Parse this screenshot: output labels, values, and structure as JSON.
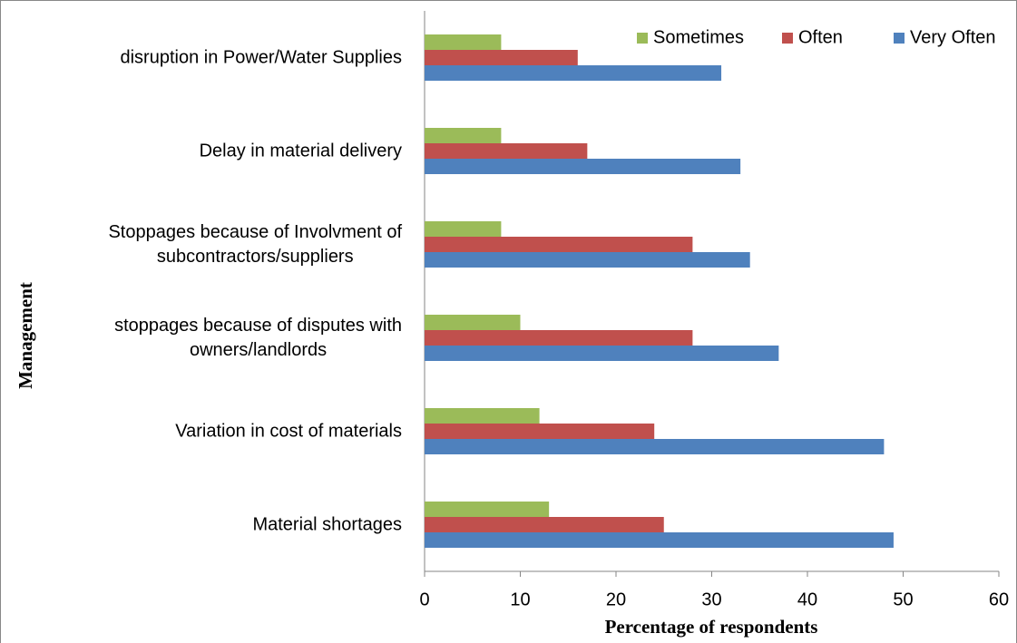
{
  "chart_data": {
    "type": "bar",
    "orientation": "horizontal",
    "xlabel": "Percentage of respondents",
    "ylabel": "Management",
    "categories": [
      [
        "Material shortages"
      ],
      [
        "Variation in cost of materials"
      ],
      [
        "stoppages because of disputes with",
        "owners/landlords"
      ],
      [
        "Stoppages because of Involvment of",
        "subcontractors/suppliers"
      ],
      [
        "Delay in material delivery"
      ],
      [
        "disruption in Power/Water Supplies"
      ]
    ],
    "series": [
      {
        "name": "Sometimes",
        "color": "#9bbb59",
        "values": [
          13,
          12,
          10,
          8,
          8,
          8
        ]
      },
      {
        "name": "Often",
        "color": "#c0504d",
        "values": [
          25,
          24,
          28,
          28,
          17,
          16
        ]
      },
      {
        "name": "Very Often",
        "color": "#4f81bd",
        "values": [
          49,
          48,
          37,
          34,
          33,
          31
        ]
      }
    ],
    "xlim": [
      0,
      60
    ],
    "xticks": [
      0,
      10,
      20,
      30,
      40,
      50,
      60
    ],
    "grid": false,
    "legend": "top-right"
  }
}
